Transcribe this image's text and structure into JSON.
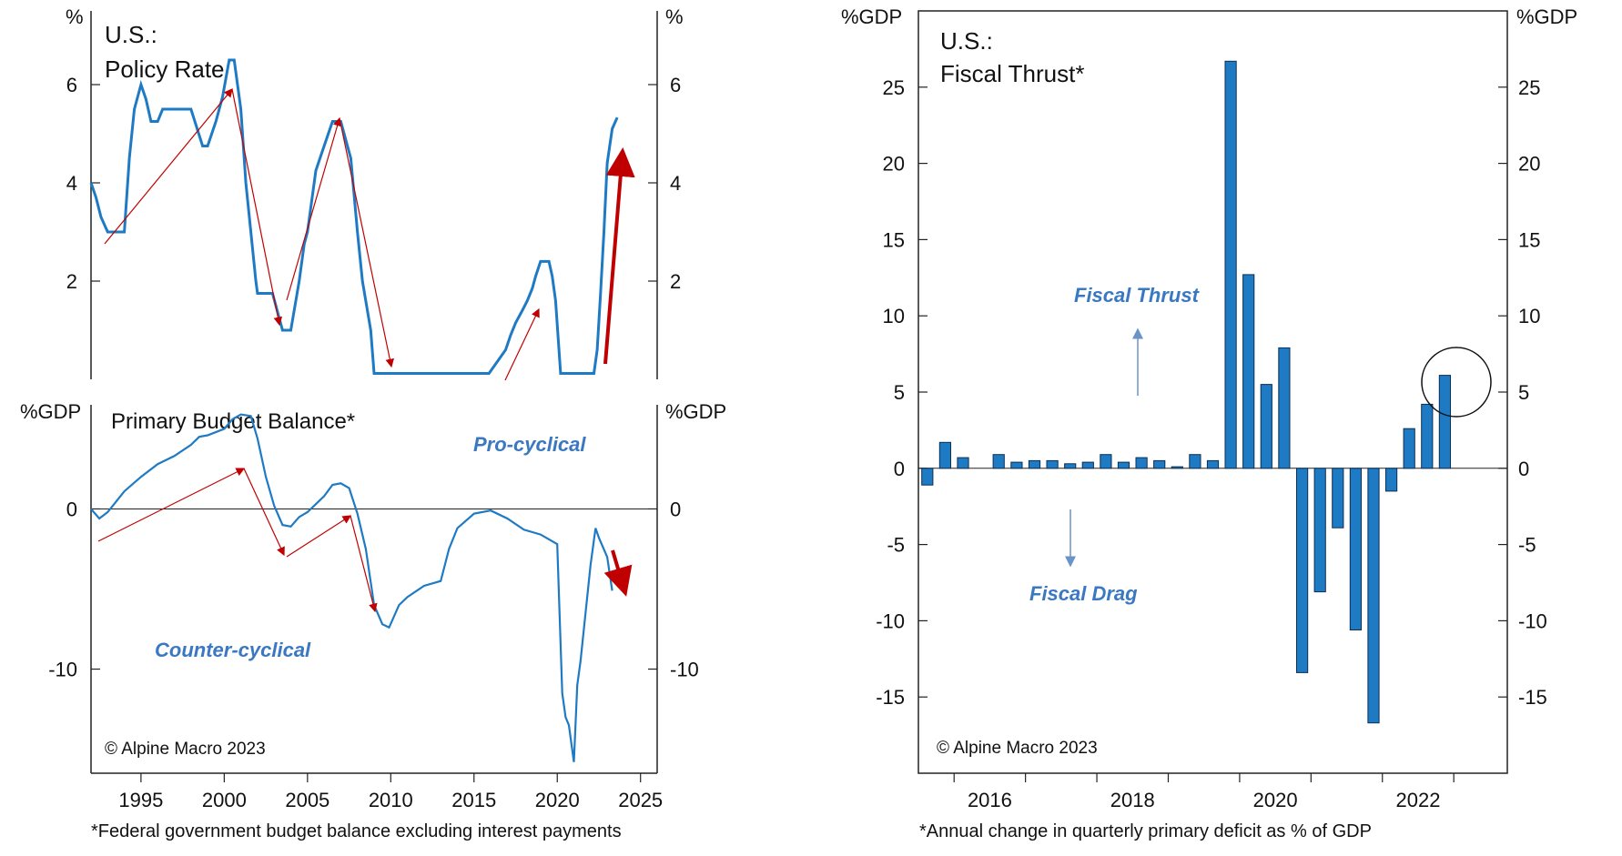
{
  "colors": {
    "line": "#1f7ac4",
    "bar": "#1f7ac4",
    "bar_edge": "#0b2f55",
    "annotation_red": "#c00000",
    "label_blue": "#3a78c2",
    "axis": "#222222"
  },
  "left_footnote": "*Federal government budget balance excluding interest payments",
  "right_footnote": "*Annual change in quarterly primary deficit as % of GDP",
  "chart_data": [
    {
      "type": "line",
      "title": "U.S.:",
      "subtitle": "Policy Rate",
      "ylabel_left": "%",
      "ylabel_right": "%",
      "ylim": [
        0,
        7.5
      ],
      "yticks": [
        2,
        4,
        6
      ],
      "xlim": [
        1992,
        2026
      ],
      "xticks": [
        1995,
        2000,
        2005,
        2010,
        2015,
        2020,
        2025
      ],
      "grid": false,
      "series": [
        {
          "x": [
            1992.0,
            1992.3,
            1992.6,
            1993.0,
            1994.0,
            1994.3,
            1994.6,
            1995.0,
            1995.3,
            1995.6,
            1996.0,
            1996.3,
            1997.0,
            1997.5,
            1998.0,
            1998.7,
            1999.0,
            1999.5,
            1999.9,
            2000.3,
            2000.6,
            2001.0,
            2001.3,
            2001.6,
            2001.9,
            2002.0,
            2002.9,
            2003.5,
            2004.0,
            2004.5,
            2004.8,
            2005.0,
            2005.5,
            2006.0,
            2006.5,
            2007.0,
            2007.6,
            2008.0,
            2008.3,
            2008.8,
            2009.0,
            2015.9,
            2016.9,
            2017.2,
            2017.5,
            2017.9,
            2018.2,
            2018.5,
            2018.7,
            2019.0,
            2019.5,
            2019.7,
            2019.9,
            2020.2,
            2022.2,
            2022.4,
            2022.6,
            2022.8,
            2023.0,
            2023.3,
            2023.6
          ],
          "y": [
            4.0,
            3.7,
            3.3,
            3.0,
            3.0,
            4.5,
            5.5,
            6.0,
            5.7,
            5.25,
            5.25,
            5.5,
            5.5,
            5.5,
            5.5,
            4.75,
            4.75,
            5.25,
            5.75,
            6.5,
            6.5,
            5.5,
            4.0,
            3.0,
            2.0,
            1.75,
            1.75,
            1.0,
            1.0,
            2.0,
            2.75,
            3.0,
            4.25,
            4.75,
            5.25,
            5.25,
            4.5,
            3.0,
            2.0,
            1.0,
            0.12,
            0.12,
            0.6,
            0.9,
            1.15,
            1.4,
            1.6,
            1.85,
            2.1,
            2.4,
            2.4,
            2.1,
            1.6,
            0.12,
            0.12,
            0.6,
            1.75,
            3.0,
            4.4,
            5.1,
            5.33
          ]
        }
      ],
      "copyright": ""
    },
    {
      "type": "line",
      "title": "Primary Budget Balance*",
      "ylabel_left": "%GDP",
      "ylabel_right": "%GDP",
      "ylim": [
        -16.5,
        6.5
      ],
      "yticks": [
        0,
        -10
      ],
      "xlim": [
        1992,
        2026
      ],
      "xticks": [
        1995,
        2000,
        2005,
        2010,
        2015,
        2020,
        2025
      ],
      "grid": false,
      "zero_line": true,
      "series": [
        {
          "x": [
            1992.0,
            1992.5,
            1993.0,
            1994.0,
            1995.0,
            1996.0,
            1997.0,
            1998.0,
            1998.5,
            1999.0,
            2000.0,
            2000.5,
            2001.0,
            2001.6,
            2002.0,
            2002.5,
            2003.0,
            2003.5,
            2004.0,
            2004.5,
            2005.0,
            2005.5,
            2006.0,
            2006.5,
            2007.0,
            2007.5,
            2008.0,
            2008.5,
            2009.0,
            2009.5,
            2009.9,
            2010.5,
            2011.0,
            2012.0,
            2013.0,
            2013.5,
            2014.0,
            2015.0,
            2016.0,
            2017.0,
            2018.0,
            2019.0,
            2020.0,
            2020.3,
            2020.5,
            2020.7,
            2021.0,
            2021.2,
            2021.4,
            2022.0,
            2022.3,
            2022.5,
            2023.0,
            2023.3
          ],
          "y": [
            0,
            -0.6,
            -0.2,
            1.1,
            2.0,
            2.8,
            3.3,
            4.0,
            4.5,
            4.6,
            5.0,
            5.6,
            5.9,
            5.8,
            4.4,
            2.0,
            0.2,
            -1.0,
            -1.1,
            -0.5,
            -0.2,
            0.3,
            0.8,
            1.5,
            1.6,
            1.3,
            -0.3,
            -2.5,
            -6.0,
            -7.2,
            -7.4,
            -6.0,
            -5.5,
            -4.8,
            -4.5,
            -2.5,
            -1.2,
            -0.3,
            -0.1,
            -0.6,
            -1.3,
            -1.6,
            -2.2,
            -11.5,
            -13.0,
            -13.5,
            -15.8,
            -11.0,
            -9.5,
            -3.5,
            -1.2,
            -1.8,
            -3.0,
            -5.1
          ]
        }
      ],
      "annotations": [
        "Pro-cyclical",
        "Counter-cyclical"
      ],
      "copyright": "© Alpine Macro 2023"
    },
    {
      "type": "bar",
      "title": "U.S.:",
      "subtitle": "Fiscal Thrust*",
      "ylabel_left": "%GDP",
      "ylabel_right": "%GDP",
      "ylim": [
        -20,
        30
      ],
      "yticks": [
        -15,
        -10,
        -5,
        0,
        5,
        10,
        15,
        20,
        25
      ],
      "xticks": [
        "2016",
        "2018",
        "2020",
        "2022"
      ],
      "grid": false,
      "x": [
        "2015Q3",
        "2015Q4",
        "2016Q1",
        "2016Q2",
        "2016Q3",
        "2016Q4",
        "2017Q1",
        "2017Q2",
        "2017Q3",
        "2017Q4",
        "2018Q1",
        "2018Q2",
        "2018Q3",
        "2018Q4",
        "2019Q1",
        "2019Q2",
        "2019Q3",
        "2019Q4",
        "2020Q1",
        "2020Q2",
        "2020Q3",
        "2020Q4",
        "2021Q1",
        "2021Q2",
        "2021Q3",
        "2021Q4",
        "2022Q1",
        "2022Q2",
        "2022Q3",
        "2022Q4",
        "2023Q1",
        "2023Q2",
        "2023Q3"
      ],
      "values": [
        -1.1,
        1.7,
        0.7,
        null,
        0.9,
        0.4,
        0.5,
        0.5,
        0.3,
        0.4,
        0.9,
        0.4,
        0.7,
        0.5,
        0.1,
        0.9,
        0.5,
        26.7,
        12.7,
        5.5,
        7.9,
        -13.4,
        -8.1,
        -3.9,
        -10.6,
        -16.7,
        -1.5,
        2.6,
        4.2,
        6.1,
        null,
        null,
        null
      ],
      "annotations": [
        "Fiscal Thrust",
        "Fiscal Drag"
      ],
      "copyright": "© Alpine Macro 2023"
    }
  ]
}
